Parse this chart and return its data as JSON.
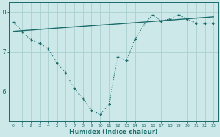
{
  "x": [
    0,
    1,
    2,
    3,
    4,
    5,
    6,
    7,
    8,
    9,
    10,
    11,
    12,
    13,
    14,
    15,
    16,
    17,
    18,
    19,
    20,
    21,
    22,
    23
  ],
  "y_main": [
    7.75,
    7.52,
    7.3,
    7.22,
    7.08,
    6.72,
    6.48,
    6.08,
    5.82,
    5.52,
    5.42,
    5.68,
    6.88,
    6.78,
    7.32,
    7.68,
    7.93,
    7.78,
    7.83,
    7.93,
    7.83,
    7.73,
    7.73,
    7.73
  ],
  "trend_x": [
    0,
    23
  ],
  "trend_y": [
    7.52,
    7.88
  ],
  "ylim": [
    5.25,
    8.25
  ],
  "xlim": [
    -0.5,
    23.5
  ],
  "bg_color": "#cce8e8",
  "grid_color": "#aad0d0",
  "line_color": "#1a6b6b",
  "xlabel": "Humidex (Indice chaleur)",
  "yticks": [
    6,
    7,
    8
  ],
  "xticks": [
    0,
    1,
    2,
    3,
    4,
    5,
    6,
    7,
    8,
    9,
    10,
    11,
    12,
    13,
    14,
    15,
    16,
    17,
    18,
    19,
    20,
    21,
    22,
    23
  ]
}
